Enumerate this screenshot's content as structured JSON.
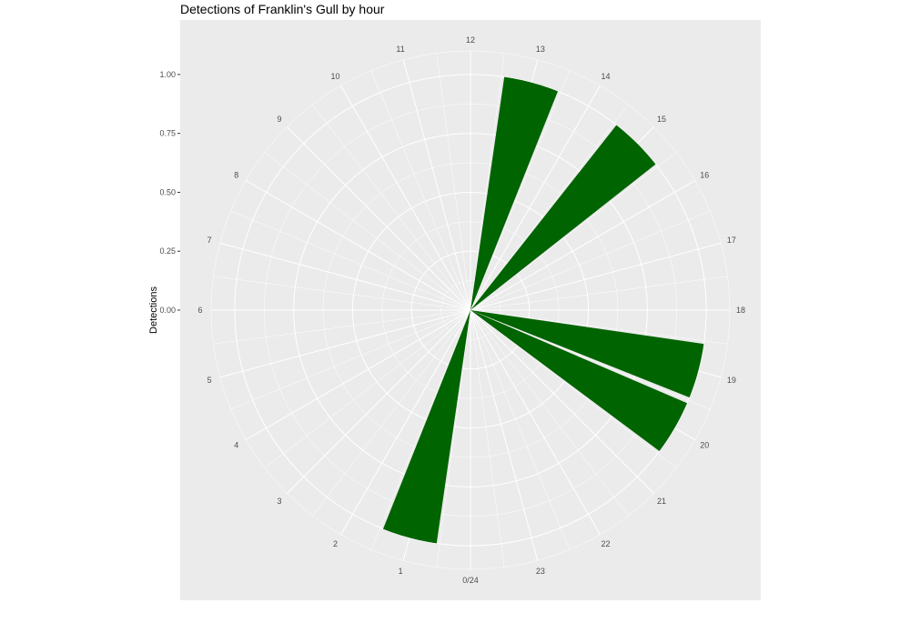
{
  "chart_data": {
    "type": "bar",
    "coord": "polar",
    "title": "Detections of Franklin's Gull by hour",
    "xlabel": "",
    "ylabel": "Detections",
    "ylim": [
      0,
      1.1
    ],
    "y_ticks": [
      0.0,
      0.25,
      0.5,
      0.75,
      1.0
    ],
    "y_tick_labels": [
      "0.00",
      "0.25",
      "0.50",
      "0.75",
      "1.00"
    ],
    "hour_labels": [
      "0/24",
      "1",
      "2",
      "3",
      "4",
      "5",
      "6",
      "7",
      "8",
      "9",
      "10",
      "11",
      "12",
      "13",
      "14",
      "15",
      "16",
      "17",
      "18",
      "19",
      "20",
      "21",
      "22",
      "23"
    ],
    "bars": [
      {
        "hour": 1,
        "value": 1.0
      },
      {
        "hour": 13,
        "value": 1.0
      },
      {
        "hour": 15,
        "value": 1.0
      },
      {
        "hour": 19,
        "value": 1.0
      },
      {
        "hour": 20,
        "value": 1.0
      }
    ],
    "grid": true,
    "legend": "none",
    "colors": {
      "bar": "#006400",
      "panel": "#ebebeb",
      "grid": "#ffffff"
    }
  }
}
